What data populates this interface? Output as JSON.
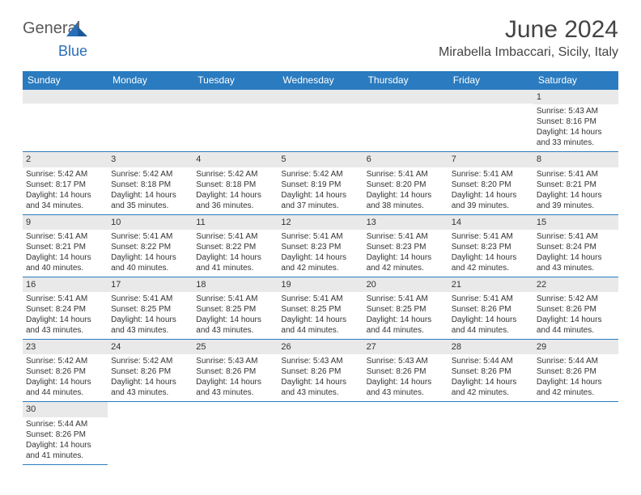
{
  "logo": {
    "text1": "General",
    "text2": "Blue"
  },
  "title": "June 2024",
  "location": "Mirabella Imbaccari, Sicily, Italy",
  "colors": {
    "header_bg": "#2a7bbf",
    "header_fg": "#ffffff",
    "daynum_bg": "#e9e9e9",
    "border": "#2a7bbf",
    "logo_gray": "#5a5a5a",
    "logo_blue": "#2a6eb8"
  },
  "weekdays": [
    "Sunday",
    "Monday",
    "Tuesday",
    "Wednesday",
    "Thursday",
    "Friday",
    "Saturday"
  ],
  "weeks": [
    [
      null,
      null,
      null,
      null,
      null,
      null,
      {
        "n": "1",
        "sr": "5:43 AM",
        "ss": "8:16 PM",
        "dl": "14 hours and 33 minutes."
      }
    ],
    [
      {
        "n": "2",
        "sr": "5:42 AM",
        "ss": "8:17 PM",
        "dl": "14 hours and 34 minutes."
      },
      {
        "n": "3",
        "sr": "5:42 AM",
        "ss": "8:18 PM",
        "dl": "14 hours and 35 minutes."
      },
      {
        "n": "4",
        "sr": "5:42 AM",
        "ss": "8:18 PM",
        "dl": "14 hours and 36 minutes."
      },
      {
        "n": "5",
        "sr": "5:42 AM",
        "ss": "8:19 PM",
        "dl": "14 hours and 37 minutes."
      },
      {
        "n": "6",
        "sr": "5:41 AM",
        "ss": "8:20 PM",
        "dl": "14 hours and 38 minutes."
      },
      {
        "n": "7",
        "sr": "5:41 AM",
        "ss": "8:20 PM",
        "dl": "14 hours and 39 minutes."
      },
      {
        "n": "8",
        "sr": "5:41 AM",
        "ss": "8:21 PM",
        "dl": "14 hours and 39 minutes."
      }
    ],
    [
      {
        "n": "9",
        "sr": "5:41 AM",
        "ss": "8:21 PM",
        "dl": "14 hours and 40 minutes."
      },
      {
        "n": "10",
        "sr": "5:41 AM",
        "ss": "8:22 PM",
        "dl": "14 hours and 40 minutes."
      },
      {
        "n": "11",
        "sr": "5:41 AM",
        "ss": "8:22 PM",
        "dl": "14 hours and 41 minutes."
      },
      {
        "n": "12",
        "sr": "5:41 AM",
        "ss": "8:23 PM",
        "dl": "14 hours and 42 minutes."
      },
      {
        "n": "13",
        "sr": "5:41 AM",
        "ss": "8:23 PM",
        "dl": "14 hours and 42 minutes."
      },
      {
        "n": "14",
        "sr": "5:41 AM",
        "ss": "8:23 PM",
        "dl": "14 hours and 42 minutes."
      },
      {
        "n": "15",
        "sr": "5:41 AM",
        "ss": "8:24 PM",
        "dl": "14 hours and 43 minutes."
      }
    ],
    [
      {
        "n": "16",
        "sr": "5:41 AM",
        "ss": "8:24 PM",
        "dl": "14 hours and 43 minutes."
      },
      {
        "n": "17",
        "sr": "5:41 AM",
        "ss": "8:25 PM",
        "dl": "14 hours and 43 minutes."
      },
      {
        "n": "18",
        "sr": "5:41 AM",
        "ss": "8:25 PM",
        "dl": "14 hours and 43 minutes."
      },
      {
        "n": "19",
        "sr": "5:41 AM",
        "ss": "8:25 PM",
        "dl": "14 hours and 44 minutes."
      },
      {
        "n": "20",
        "sr": "5:41 AM",
        "ss": "8:25 PM",
        "dl": "14 hours and 44 minutes."
      },
      {
        "n": "21",
        "sr": "5:41 AM",
        "ss": "8:26 PM",
        "dl": "14 hours and 44 minutes."
      },
      {
        "n": "22",
        "sr": "5:42 AM",
        "ss": "8:26 PM",
        "dl": "14 hours and 44 minutes."
      }
    ],
    [
      {
        "n": "23",
        "sr": "5:42 AM",
        "ss": "8:26 PM",
        "dl": "14 hours and 44 minutes."
      },
      {
        "n": "24",
        "sr": "5:42 AM",
        "ss": "8:26 PM",
        "dl": "14 hours and 43 minutes."
      },
      {
        "n": "25",
        "sr": "5:43 AM",
        "ss": "8:26 PM",
        "dl": "14 hours and 43 minutes."
      },
      {
        "n": "26",
        "sr": "5:43 AM",
        "ss": "8:26 PM",
        "dl": "14 hours and 43 minutes."
      },
      {
        "n": "27",
        "sr": "5:43 AM",
        "ss": "8:26 PM",
        "dl": "14 hours and 43 minutes."
      },
      {
        "n": "28",
        "sr": "5:44 AM",
        "ss": "8:26 PM",
        "dl": "14 hours and 42 minutes."
      },
      {
        "n": "29",
        "sr": "5:44 AM",
        "ss": "8:26 PM",
        "dl": "14 hours and 42 minutes."
      }
    ],
    [
      {
        "n": "30",
        "sr": "5:44 AM",
        "ss": "8:26 PM",
        "dl": "14 hours and 41 minutes."
      },
      null,
      null,
      null,
      null,
      null,
      null
    ]
  ],
  "labels": {
    "sunrise": "Sunrise:",
    "sunset": "Sunset:",
    "daylight": "Daylight:"
  }
}
